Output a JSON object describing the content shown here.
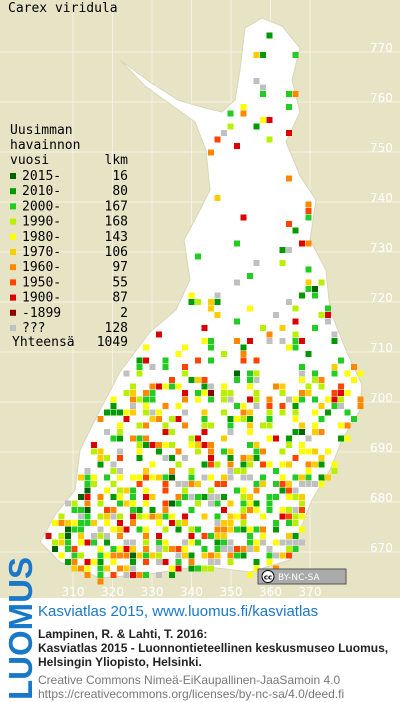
{
  "map": {
    "title": "Carex viridula",
    "legend": {
      "heading": [
        "Uusimman",
        "havainnon",
        "vuosi"
      ],
      "count_heading": "lkm",
      "entries": [
        {
          "label": "2015-",
          "count": 16,
          "color": "#006400"
        },
        {
          "label": "2010-",
          "count": 80,
          "color": "#009a00"
        },
        {
          "label": "2000-",
          "count": 167,
          "color": "#22cc22"
        },
        {
          "label": "1990-",
          "count": 168,
          "color": "#b8f000"
        },
        {
          "label": "1980-",
          "count": 143,
          "color": "#ffff00"
        },
        {
          "label": "1970-",
          "count": 106,
          "color": "#ffcc00"
        },
        {
          "label": "1960-",
          "count": 97,
          "color": "#ff8800"
        },
        {
          "label": "1950-",
          "count": 55,
          "color": "#ff4400"
        },
        {
          "label": "1900-",
          "count": 87,
          "color": "#dd0000"
        },
        {
          "label": "-1899",
          "count": 2,
          "color": "#8b0000"
        },
        {
          "label": "???",
          "count": 128,
          "color": "#c0c0c0"
        }
      ],
      "total_label": "Yhteensä",
      "total": 1049
    },
    "grid": {
      "y_labels": [
        770,
        760,
        750,
        740,
        730,
        720,
        710,
        700,
        690,
        680,
        670
      ],
      "x_labels": [
        310,
        320,
        330,
        340,
        350,
        360,
        370
      ]
    },
    "badge_icon": "cc",
    "badge_text": "BY-NC-SA"
  },
  "footer": {
    "logo": "LUOMUS",
    "headline": "Kasviatlas 2015, www.luomus.fi/kasviatlas",
    "citation": [
      "Lampinen, R. & Lahti, T. 2016:",
      "Kasviatlas 2015 - Luonnontieteellinen keskusmuseo Luomus,",
      "Helsingin Yliopisto, Helsinki."
    ],
    "license": [
      "Creative Commons Nimeä-EiKaupallinen-JaaSamoin 4.0",
      "https://creativecommons.org/licenses/by-nc-sa/4.0/deed.fi"
    ]
  }
}
